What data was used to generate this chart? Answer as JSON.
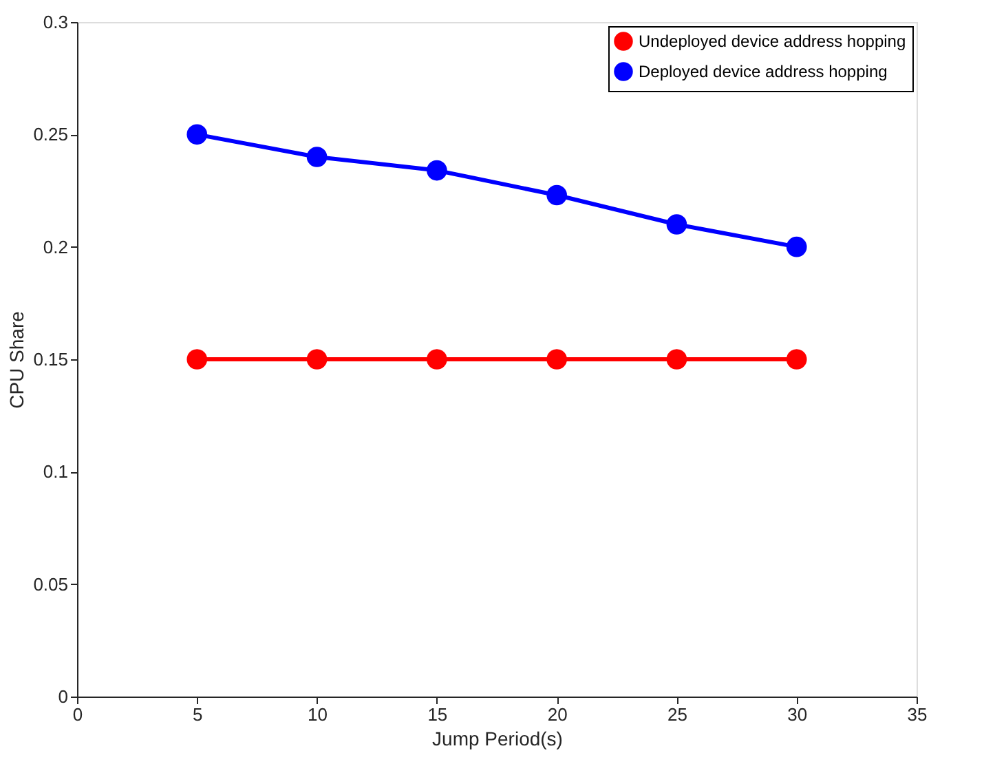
{
  "chart_data": {
    "type": "line",
    "xlabel": "Jump Period(s)",
    "ylabel": "CPU Share",
    "x": [
      5,
      10,
      15,
      20,
      25,
      30
    ],
    "series": [
      {
        "name": "Undeployed device address hopping",
        "color": "#ff0000",
        "values": [
          0.15,
          0.15,
          0.15,
          0.15,
          0.15,
          0.15
        ]
      },
      {
        "name": "Deployed device address hopping",
        "color": "#0000ff",
        "values": [
          0.25,
          0.24,
          0.234,
          0.223,
          0.21,
          0.2
        ]
      }
    ],
    "xlim": [
      0,
      35
    ],
    "xticks": [
      0,
      5,
      10,
      15,
      20,
      25,
      30,
      35
    ],
    "ylim": [
      0,
      0.3
    ],
    "yticks": [
      0,
      0.05,
      0.1,
      0.15,
      0.2,
      0.25,
      0.3
    ],
    "grid": false,
    "legend": "top right",
    "marker": "circle",
    "line_style": "solid"
  }
}
